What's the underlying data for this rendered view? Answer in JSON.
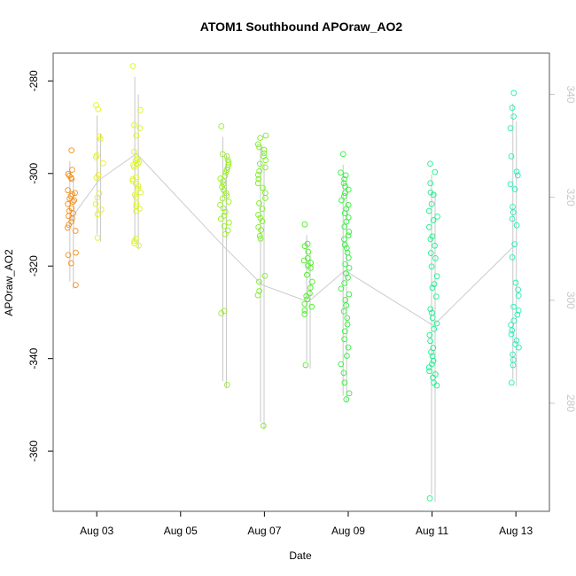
{
  "chart_data": {
    "type": "scatter",
    "title": "ATOM1 Southbound APOraw_AO2",
    "xlabel": "Date",
    "ylabel": "APOraw_AO2",
    "x_units": "days since Aug 01 00:00",
    "xlim": [
      0.96,
      12.8
    ],
    "ylim": [
      -373,
      -274
    ],
    "y2lim": [
      259,
      348
    ],
    "x_ticks": [
      {
        "label": "Aug 03",
        "x": 2
      },
      {
        "label": "Aug 05",
        "x": 4
      },
      {
        "label": "Aug 07",
        "x": 6
      },
      {
        "label": "Aug 09",
        "x": 8
      },
      {
        "label": "Aug 11",
        "x": 10
      },
      {
        "label": "Aug 13",
        "x": 12
      }
    ],
    "y_ticks": [
      {
        "label": "-280",
        "value": -280
      },
      {
        "label": "-300",
        "value": -300
      },
      {
        "label": "-320",
        "value": -320
      },
      {
        "label": "-340",
        "value": -340
      },
      {
        "label": "-360",
        "value": -360
      }
    ],
    "y2_ticks": [
      {
        "label": "280",
        "value": 280
      },
      {
        "label": "300",
        "value": 300
      },
      {
        "label": "320",
        "value": 320
      },
      {
        "label": "340",
        "value": 340
      }
    ],
    "colors": {
      "secondary": "#c8c8c8",
      "frame": "#555555"
    },
    "series": [
      {
        "name": "APOraw_AO2",
        "axis": "left",
        "marker": "open-circle",
        "clusters": [
          {
            "x": 1.4,
            "color": "#f0901e",
            "y": [
              -295,
              -299.2,
              -300.1,
              -300.5,
              -300.9,
              -301.2,
              -303.6,
              -304.2,
              -304.5,
              -304.9,
              -305.4,
              -305.8,
              -306.1,
              -306.6,
              -307.5,
              -308.1,
              -308.6,
              -309.2,
              -309.7,
              -310.4,
              -311.1,
              -311.7,
              -312.4,
              -317.1,
              -317.6,
              -319.4,
              -324.1
            ]
          },
          {
            "x": 2.05,
            "color": "#e6f01e",
            "y": [
              -285.2,
              -286.1,
              -292,
              -292.5,
              -296.1,
              -296.5,
              -297.8,
              -300.3,
              -300.9,
              -304.3,
              -305.2,
              -306.6,
              -307.8,
              -308.8,
              -313.9
            ]
          },
          {
            "x": 2.95,
            "color": "#dcf51e",
            "y": [
              -276.8,
              -286.3,
              -289.5,
              -290.2,
              -291.8,
              -295.3,
              -296.8,
              -297.2,
              -297.5,
              -297.9,
              -298.2,
              -298.6,
              -300.8,
              -301.2,
              -301.6,
              -302.2,
              -302.7,
              -303.3,
              -304.1,
              -304.6,
              -305.1,
              -306.5,
              -307.1,
              -307.6,
              -308.1,
              -314.1,
              -314.6,
              -315.1,
              -315.6
            ]
          },
          {
            "x": 5.05,
            "color": "#96f01e",
            "y": [
              -289.8,
              -295.8,
              -296.3,
              -297.1,
              -297.6,
              -298.1,
              -298.7,
              -299.2,
              -299.8,
              -300.5,
              -301.1,
              -301.7,
              -302.3,
              -302.9,
              -303.6,
              -304.2,
              -304.8,
              -305.4,
              -306.1,
              -306.8,
              -307.5,
              -308.3,
              -309.1,
              -309.8,
              -310.6,
              -311.4,
              -312.3,
              -313.1,
              -329.7,
              -330.2,
              -345.7
            ]
          },
          {
            "x": 5.95,
            "color": "#78f01e",
            "y": [
              -291.8,
              -292.3,
              -293.7,
              -294.3,
              -294.9,
              -295.6,
              -296.3,
              -297.1,
              -297.9,
              -298.7,
              -299.5,
              -300.3,
              -301.2,
              -302.1,
              -303.1,
              -304.2,
              -305.3,
              -306.4,
              -307.6,
              -308.9,
              -309.6,
              -310.3,
              -311.6,
              -312.2,
              -313.5,
              -314.1,
              -322.1,
              -323.4,
              -325.4,
              -326.3,
              -354.5
            ]
          },
          {
            "x": 7.05,
            "color": "#46f01e",
            "y": [
              -311,
              -315.2,
              -315.7,
              -316.9,
              -318.3,
              -318.8,
              -319.3,
              -319.9,
              -320.4,
              -321.9,
              -323.4,
              -324.7,
              -325.9,
              -326.5,
              -327.2,
              -328.2,
              -328.8,
              -329.6,
              -330.4,
              -341.4
            ]
          },
          {
            "x": 7.92,
            "color": "#32f03c",
            "y": [
              -295.8,
              -299.8,
              -300.4,
              -301.2,
              -302.1,
              -302.8,
              -303.5,
              -304.2,
              -304.9,
              -305.8,
              -306.8,
              -307.6,
              -308.6,
              -309.5,
              -310.4,
              -311.5,
              -312.6,
              -313.4,
              -314.2,
              -315.4,
              -316.1,
              -317.1,
              -318.2,
              -319.6,
              -320.4,
              -321.6,
              -322.5,
              -323.7,
              -324.9,
              -326.1,
              -327.3,
              -328.5,
              -329.8,
              -331.2,
              -332.6,
              -334.1,
              -335.8,
              -337.6,
              -339.4,
              -341.2,
              -343.1,
              -345.2,
              -347.5,
              -348.8
            ]
          },
          {
            "x": 10.03,
            "color": "#1ef08c",
            "y": [
              -297.9,
              -299.7,
              -302.1,
              -304.1,
              -304.6,
              -306.6,
              -308.1,
              -309.3,
              -310.1,
              -311.6,
              -313.6,
              -314.2,
              -315.6,
              -317.2,
              -318.3,
              -320.1,
              -322.2,
              -323.9,
              -324.7,
              -326.6,
              -329.3,
              -330.1,
              -331.2,
              -332.4,
              -333.6,
              -334.9,
              -336.2,
              -337.7,
              -338.6,
              -339.5,
              -340.5,
              -341.2,
              -341.9,
              -342.7,
              -343.4,
              -344.1,
              -345.2,
              -345.8,
              -370.2
            ]
          },
          {
            "x": 11.97,
            "color": "#1ef0b4",
            "y": [
              -282.6,
              -285.8,
              -287.7,
              -290.2,
              -296.3,
              -299.6,
              -300.4,
              -302.3,
              -303.4,
              -307.2,
              -308.4,
              -309.8,
              -311.2,
              -315.3,
              -318.1,
              -323.6,
              -325.1,
              -326.4,
              -328.8,
              -329.6,
              -330.5,
              -331.8,
              -332.7,
              -333.9,
              -334.7,
              -336.1,
              -336.9,
              -337.6,
              -339.1,
              -340.3,
              -341.4,
              -345.2
            ]
          }
        ]
      },
      {
        "name": "secondary (right axis)",
        "axis": "right",
        "style": "line",
        "color": "#c8c8c8",
        "description": "gray trace drawn against the right axis"
      }
    ]
  }
}
